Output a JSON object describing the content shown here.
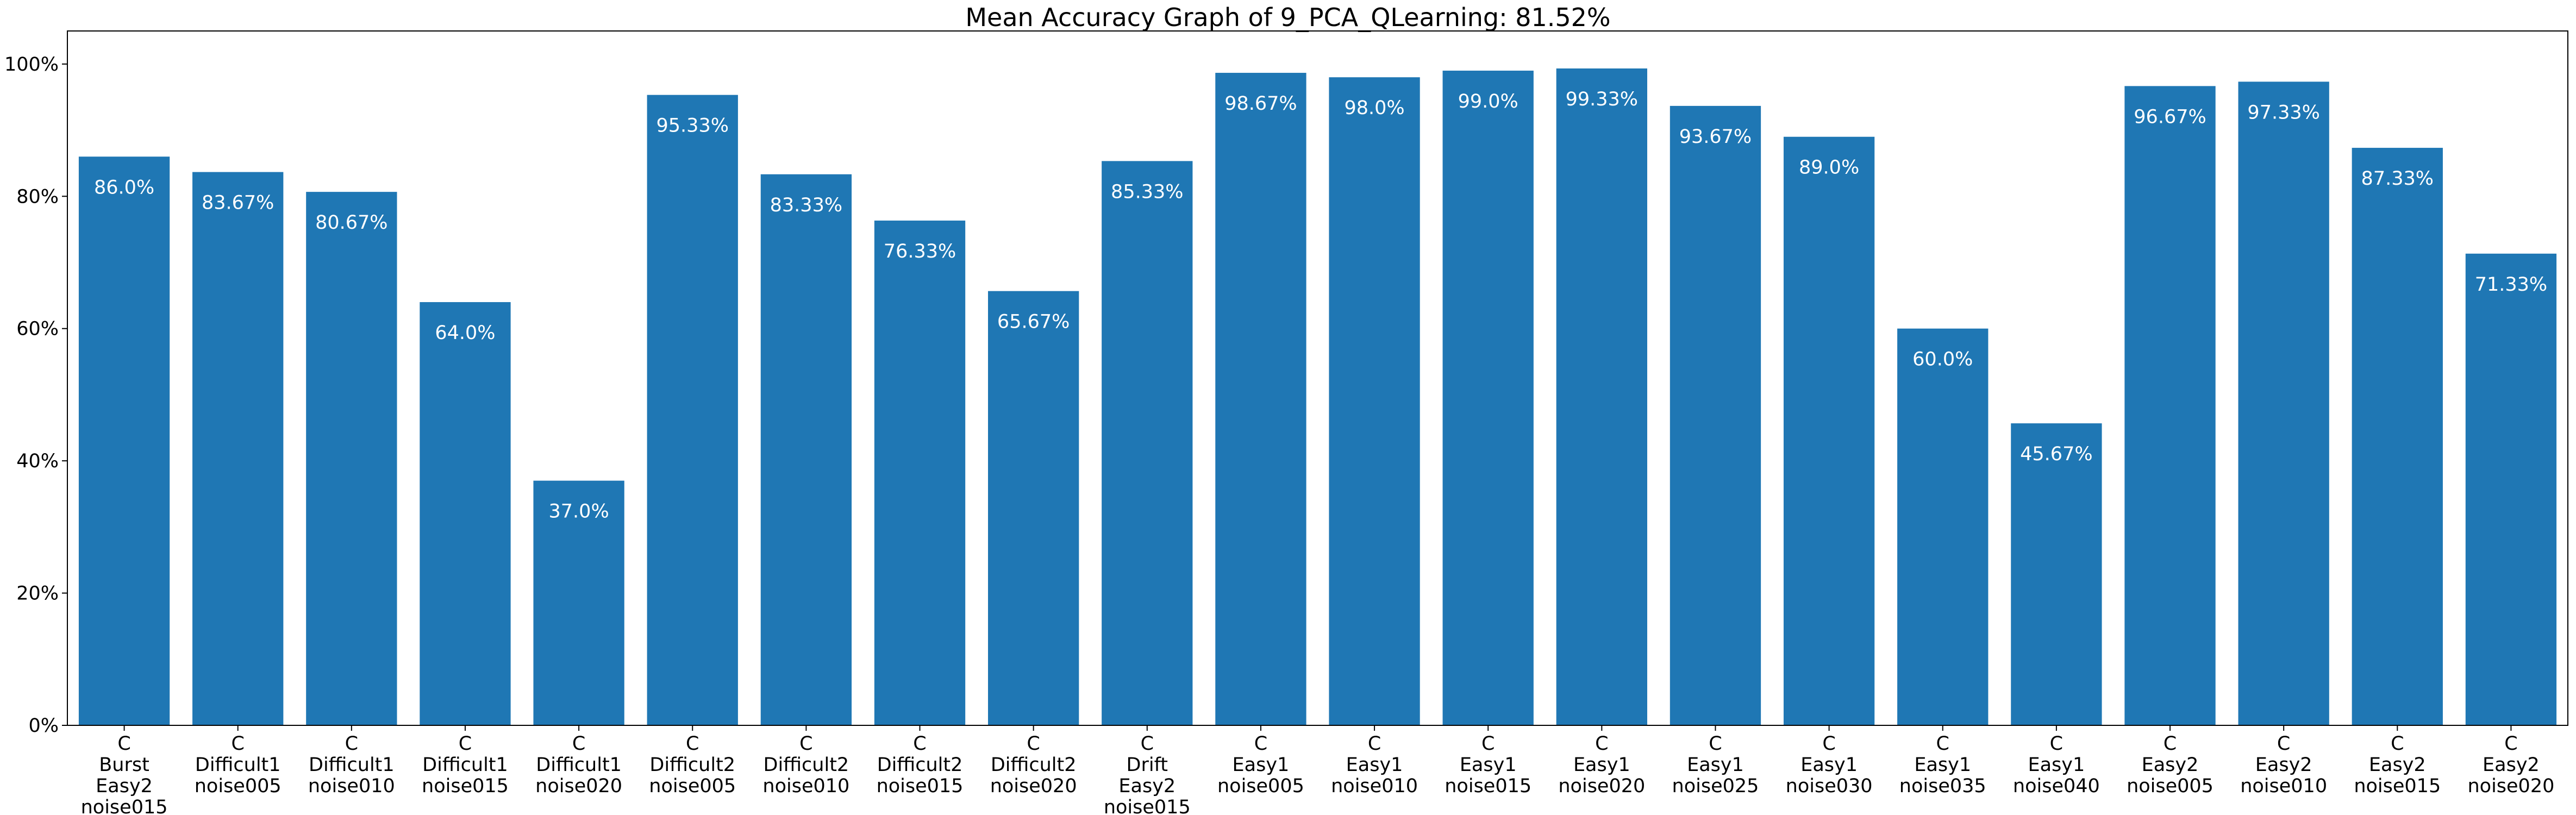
{
  "chart_data": {
    "type": "bar",
    "title": "Mean Accuracy Graph of 9_PCA_QLearning: 81.52%",
    "xlabel": "",
    "ylabel": "",
    "ylim": [
      0,
      105
    ],
    "y_tick_values": [
      0,
      20,
      40,
      60,
      80,
      100
    ],
    "y_tick_labels": [
      "0%",
      "20%",
      "40%",
      "60%",
      "80%",
      "100%"
    ],
    "grid": false,
    "legend": "none",
    "bar_color": "#1f77b4",
    "label_color": "#ffffff",
    "categories": [
      [
        "C",
        "Burst",
        "Easy2",
        "noise015"
      ],
      [
        "C",
        "Difficult1",
        "noise005"
      ],
      [
        "C",
        "Difficult1",
        "noise010"
      ],
      [
        "C",
        "Difficult1",
        "noise015"
      ],
      [
        "C",
        "Difficult1",
        "noise020"
      ],
      [
        "C",
        "Difficult2",
        "noise005"
      ],
      [
        "C",
        "Difficult2",
        "noise010"
      ],
      [
        "C",
        "Difficult2",
        "noise015"
      ],
      [
        "C",
        "Difficult2",
        "noise020"
      ],
      [
        "C",
        "Drift",
        "Easy2",
        "noise015"
      ],
      [
        "C",
        "Easy1",
        "noise005"
      ],
      [
        "C",
        "Easy1",
        "noise010"
      ],
      [
        "C",
        "Easy1",
        "noise015"
      ],
      [
        "C",
        "Easy1",
        "noise020"
      ],
      [
        "C",
        "Easy1",
        "noise025"
      ],
      [
        "C",
        "Easy1",
        "noise030"
      ],
      [
        "C",
        "Easy1",
        "noise035"
      ],
      [
        "C",
        "Easy1",
        "noise040"
      ],
      [
        "C",
        "Easy2",
        "noise005"
      ],
      [
        "C",
        "Easy2",
        "noise010"
      ],
      [
        "C",
        "Easy2",
        "noise015"
      ],
      [
        "C",
        "Easy2",
        "noise020"
      ]
    ],
    "values": [
      86.0,
      83.67,
      80.67,
      64.0,
      37.0,
      95.33,
      83.33,
      76.33,
      65.67,
      85.33,
      98.67,
      98.0,
      99.0,
      99.33,
      93.67,
      89.0,
      60.0,
      45.67,
      96.67,
      97.33,
      87.33,
      71.33
    ],
    "data_labels": [
      "86.0%",
      "83.67%",
      "80.67%",
      "64.0%",
      "37.0%",
      "95.33%",
      "83.33%",
      "76.33%",
      "65.67%",
      "85.33%",
      "98.67%",
      "98.0%",
      "99.0%",
      "99.33%",
      "93.67%",
      "89.0%",
      "60.0%",
      "45.67%",
      "96.67%",
      "97.33%",
      "87.33%",
      "71.33%"
    ]
  }
}
